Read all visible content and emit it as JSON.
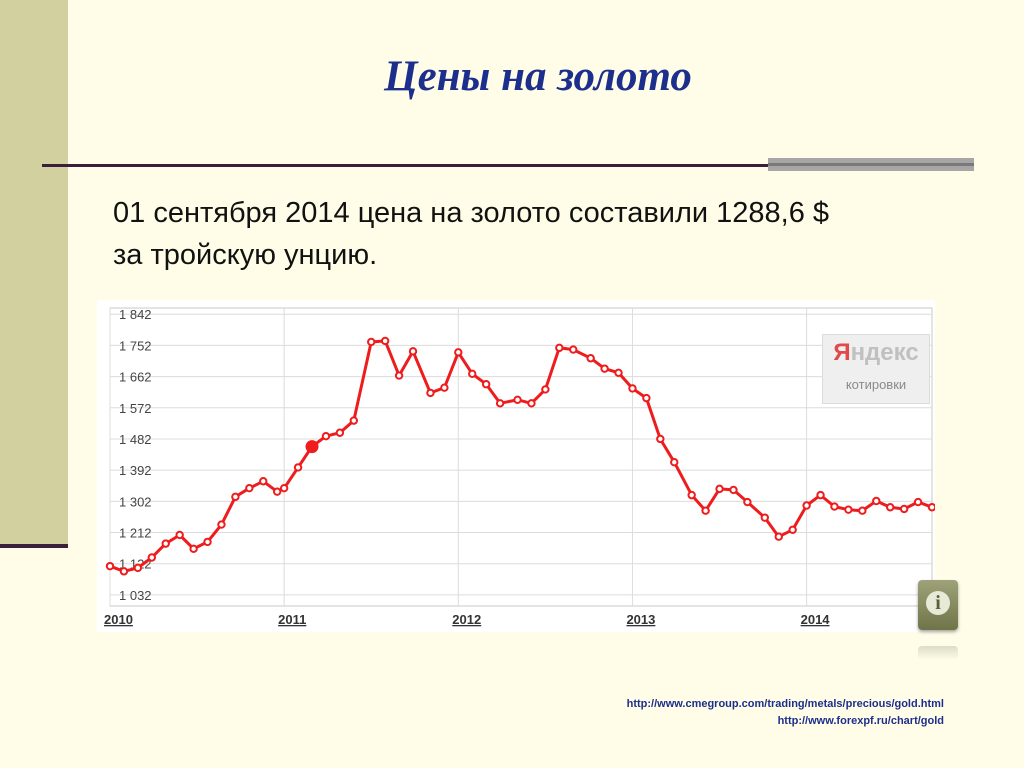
{
  "slide": {
    "title": "Цены на золото",
    "body_line1": "01 сентября 2014 цена на золото составили 1288,6 $",
    "body_line2": "за тройскую унцию.",
    "links": [
      "http://www.cmegroup.com/trading/metals/precious/gold.html",
      "http://www.forexpf.ru/chart/gold"
    ],
    "colors": {
      "title": "#1c2f8c",
      "band": "#d3d09f",
      "line": "#ee1c1c"
    }
  },
  "badge": {
    "name_first": "Я",
    "name_rest": "ндекс",
    "subtitle": "котировки"
  },
  "info_button": {
    "icon": "info-icon",
    "glyph": "i"
  },
  "chart_data": {
    "type": "line",
    "ylim": [
      1000,
      1860
    ],
    "yticks": [
      1032,
      1122,
      1212,
      1302,
      1392,
      1482,
      1572,
      1662,
      1752,
      1842
    ],
    "ytick_labels": [
      "1 032",
      "1 122",
      "1 212",
      "1 302",
      "1 392",
      "1 482",
      "1 572",
      "1 662",
      "1 752",
      "1 842"
    ],
    "xticks": [
      2010,
      2011,
      2012,
      2013,
      2014
    ],
    "xtick_labels": [
      "2010",
      "2011",
      "2012",
      "2013",
      "2014"
    ],
    "xlim": [
      2010.0,
      2014.72
    ],
    "grid": true,
    "highlight_x": 2011.16,
    "series": [
      {
        "x": [
          2010.0,
          2010.08,
          2010.16,
          2010.24,
          2010.32,
          2010.4,
          2010.48,
          2010.56,
          2010.64,
          2010.72,
          2010.8,
          2010.88,
          2010.96,
          2011.0,
          2011.08,
          2011.16,
          2011.24,
          2011.32,
          2011.4,
          2011.5,
          2011.58,
          2011.66,
          2011.74,
          2011.84,
          2011.92,
          2012.0,
          2012.08,
          2012.16,
          2012.24,
          2012.34,
          2012.42,
          2012.5,
          2012.58,
          2012.66,
          2012.76,
          2012.84,
          2012.92,
          2013.0,
          2013.08,
          2013.16,
          2013.24,
          2013.34,
          2013.42,
          2013.5,
          2013.58,
          2013.66,
          2013.76,
          2013.84,
          2013.92,
          2014.0,
          2014.08,
          2014.16,
          2014.24,
          2014.32,
          2014.4,
          2014.48,
          2014.56,
          2014.64,
          2014.72
        ],
        "values": [
          1115,
          1100,
          1110,
          1140,
          1180,
          1205,
          1165,
          1185,
          1235,
          1315,
          1340,
          1360,
          1330,
          1340,
          1400,
          1460,
          1490,
          1500,
          1535,
          1762,
          1765,
          1665,
          1735,
          1615,
          1630,
          1732,
          1670,
          1640,
          1585,
          1595,
          1585,
          1625,
          1745,
          1740,
          1715,
          1685,
          1673,
          1628,
          1600,
          1482,
          1415,
          1320,
          1275,
          1338,
          1335,
          1300,
          1255,
          1200,
          1220,
          1290,
          1320,
          1287,
          1278,
          1275,
          1303,
          1285,
          1280,
          1300,
          1285
        ]
      }
    ]
  }
}
